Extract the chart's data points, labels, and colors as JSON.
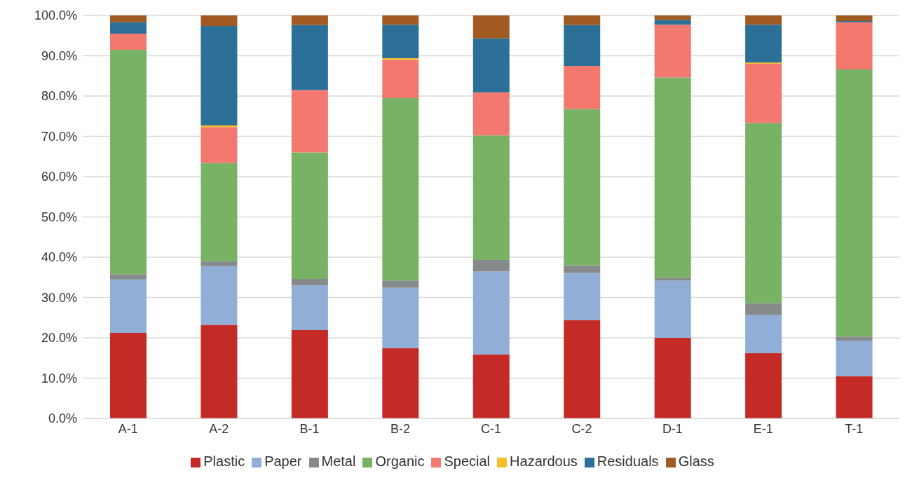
{
  "chart_data": {
    "type": "bar",
    "stacked": true,
    "categories": [
      "A-1",
      "A-2",
      "B-1",
      "B-2",
      "C-1",
      "C-2",
      "D-1",
      "E-1",
      "T-1"
    ],
    "series": [
      {
        "name": "Plastic",
        "color": "#c42b27",
        "values": [
          21.2,
          23.2,
          21.9,
          17.5,
          15.9,
          24.4,
          20.0,
          16.2,
          10.5
        ]
      },
      {
        "name": "Paper",
        "color": "#91aed6",
        "values": [
          13.3,
          14.6,
          11.1,
          14.9,
          20.6,
          11.7,
          14.2,
          9.5,
          8.8
        ]
      },
      {
        "name": "Metal",
        "color": "#878a8a",
        "values": [
          1.3,
          1.2,
          1.6,
          1.8,
          2.8,
          1.9,
          0.7,
          2.9,
          1.0
        ]
      },
      {
        "name": "Organic",
        "color": "#78b265",
        "values": [
          55.7,
          24.4,
          31.4,
          45.3,
          30.9,
          38.8,
          49.7,
          44.7,
          66.3
        ]
      },
      {
        "name": "Special",
        "color": "#f27870",
        "values": [
          4.0,
          8.9,
          15.5,
          9.5,
          10.7,
          10.7,
          13.1,
          14.7,
          11.7
        ]
      },
      {
        "name": "Hazardous",
        "color": "#f5c02a",
        "values": [
          0,
          0.4,
          0,
          0.4,
          0,
          0,
          0,
          0.3,
          0
        ]
      },
      {
        "name": "Residuals",
        "color": "#2c7098",
        "values": [
          2.8,
          24.7,
          16.1,
          8.3,
          13.4,
          10.1,
          1.2,
          9.4,
          0.3
        ]
      },
      {
        "name": "Glass",
        "color": "#a25a23",
        "values": [
          1.7,
          2.6,
          2.4,
          2.3,
          5.7,
          2.4,
          1.1,
          2.3,
          1.4
        ]
      }
    ],
    "ylim": [
      0,
      100
    ],
    "yticks": [
      {
        "value": 0,
        "label": "0.0%"
      },
      {
        "value": 10,
        "label": "10.0%"
      },
      {
        "value": 20,
        "label": "20.0%"
      },
      {
        "value": 30,
        "label": "30.0%"
      },
      {
        "value": 40,
        "label": "40.0%"
      },
      {
        "value": 50,
        "label": "50.0%"
      },
      {
        "value": 60,
        "label": "60.0%"
      },
      {
        "value": 70,
        "label": "70.0%"
      },
      {
        "value": 80,
        "label": "80.0%"
      },
      {
        "value": 90,
        "label": "90.0%"
      },
      {
        "value": 100,
        "label": "100.0%"
      }
    ],
    "grid": "y",
    "legend": "bottom"
  }
}
